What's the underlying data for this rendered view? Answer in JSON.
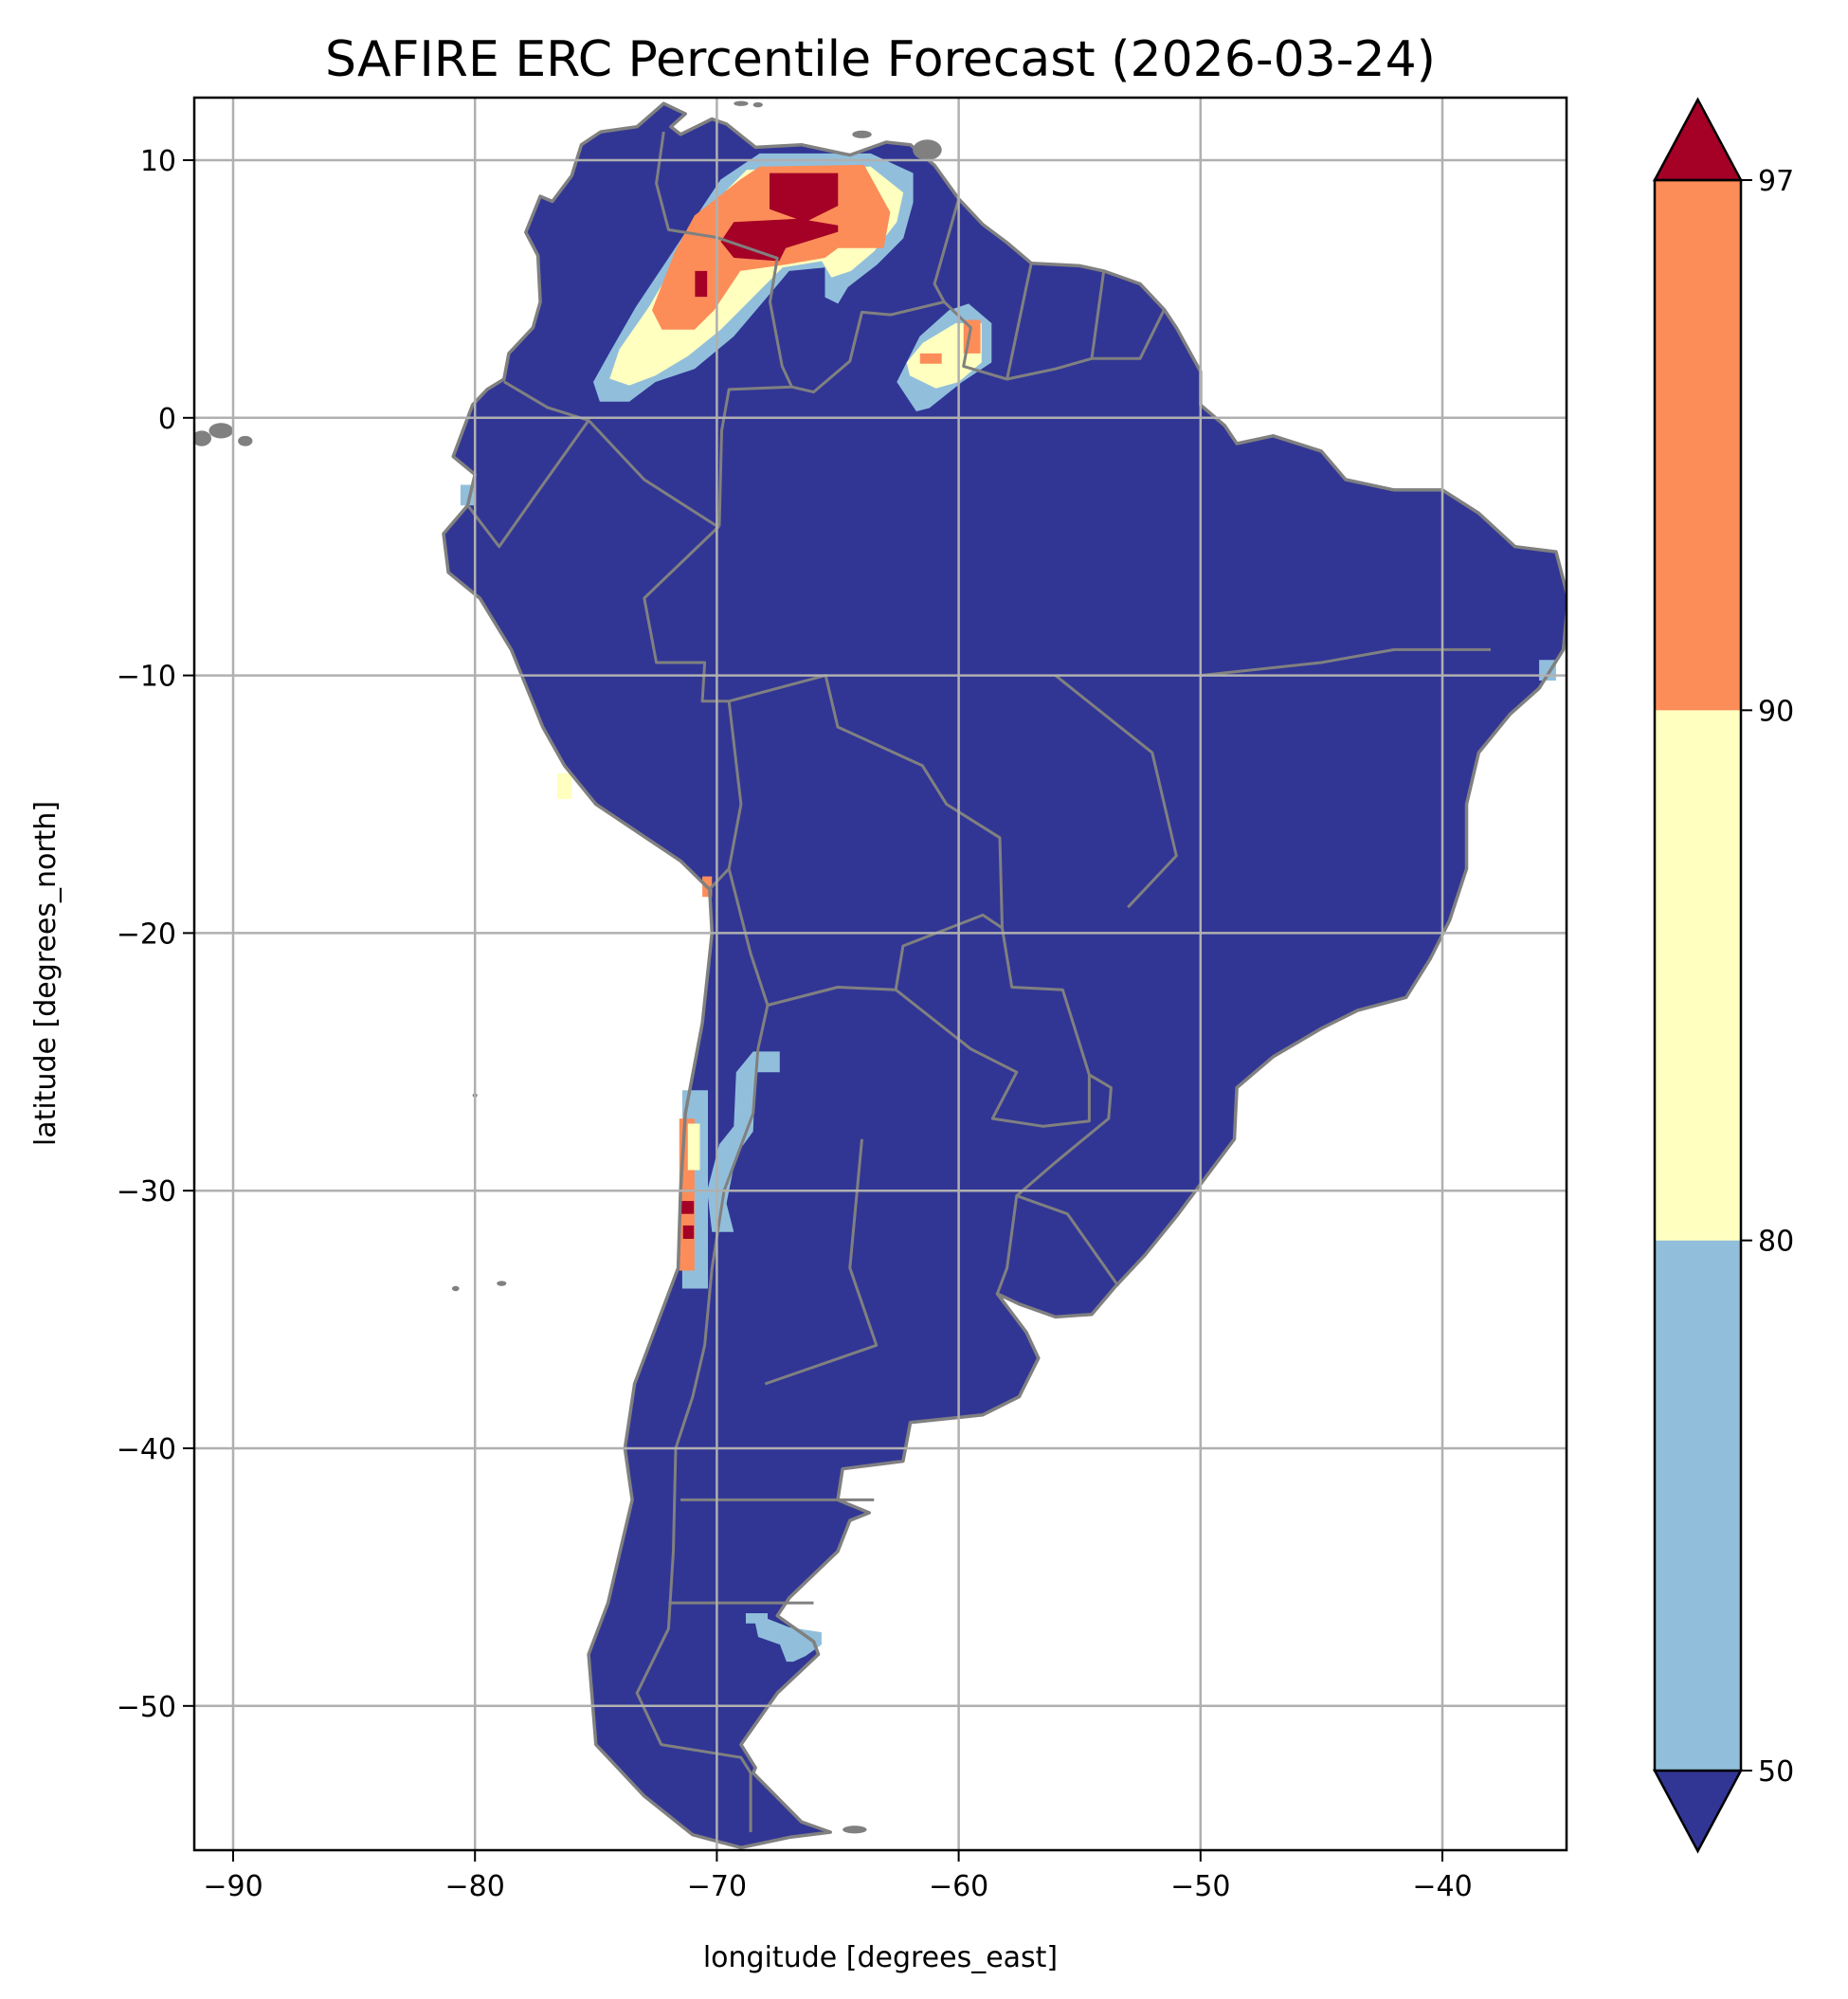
{
  "chart_data": {
    "type": "map",
    "title": "SAFIRE ERC Percentile Forecast (2026-03-24)",
    "xlabel": "longitude [degrees_east]",
    "ylabel": "latitude [degrees_north]",
    "xlim": [
      -91.6,
      -34.8
    ],
    "ylim": [
      -55.6,
      12.4
    ],
    "xticks": [
      -90,
      -80,
      -70,
      -60,
      -50,
      -40
    ],
    "xtick_labels": [
      "−90",
      "−80",
      "−70",
      "−60",
      "−50",
      "−40"
    ],
    "yticks": [
      10,
      0,
      -10,
      -20,
      -30,
      -40,
      -50
    ],
    "ytick_labels": [
      "10",
      "0",
      "−10",
      "−20",
      "−30",
      "−40",
      "−50"
    ],
    "grid": true,
    "land_class": "<50",
    "border_color": "#808080",
    "colorbar": {
      "placement": "right",
      "extend": "both",
      "boundaries": [
        50,
        80,
        90,
        97
      ],
      "tick_labels": [
        "50",
        "80",
        "90",
        "97"
      ],
      "classes": [
        {
          "class": "<50",
          "color": "#313695"
        },
        {
          "class": "50-80",
          "color": "#91bfdb"
        },
        {
          "class": "80-90",
          "color": "#ffffbf"
        },
        {
          "class": "90-97",
          "color": "#fc8d59"
        },
        {
          "class": ">97",
          "color": "#a50026"
        }
      ]
    },
    "regions": [
      {
        "class": "50-80",
        "polygon": [
          [
            -74.84,
            0.63
          ],
          [
            -75.11,
            1.39
          ],
          [
            -74.43,
            2.53
          ],
          [
            -73.35,
            4.3
          ],
          [
            -72.0,
            6.2
          ],
          [
            -70.92,
            7.73
          ],
          [
            -69.84,
            9.25
          ],
          [
            -68.23,
            10.26
          ],
          [
            -63.64,
            10.26
          ],
          [
            -61.88,
            9.5
          ],
          [
            -61.88,
            8.36
          ],
          [
            -62.29,
            6.97
          ],
          [
            -63.37,
            5.95
          ],
          [
            -64.58,
            5.07
          ],
          [
            -64.99,
            4.43
          ],
          [
            -65.53,
            4.68
          ],
          [
            -65.53,
            5.83
          ],
          [
            -67.01,
            5.7
          ],
          [
            -67.69,
            4.94
          ],
          [
            -69.3,
            3.16
          ],
          [
            -70.92,
            1.9
          ],
          [
            -72.54,
            1.39
          ],
          [
            -73.62,
            0.63
          ]
        ]
      },
      {
        "class": "80-90",
        "polygon": [
          [
            -74.43,
            1.52
          ],
          [
            -74.03,
            2.66
          ],
          [
            -72.81,
            4.3
          ],
          [
            -71.46,
            6.46
          ],
          [
            -70.38,
            7.98
          ],
          [
            -69.57,
            8.87
          ],
          [
            -68.76,
            9.63
          ],
          [
            -63.64,
            9.75
          ],
          [
            -62.29,
            8.74
          ],
          [
            -62.56,
            7.6
          ],
          [
            -63.5,
            6.46
          ],
          [
            -64.45,
            5.7
          ],
          [
            -65.26,
            5.45
          ],
          [
            -65.66,
            6.08
          ],
          [
            -67.28,
            5.83
          ],
          [
            -68.23,
            4.94
          ],
          [
            -69.84,
            3.42
          ],
          [
            -71.19,
            2.4
          ],
          [
            -72.54,
            1.64
          ],
          [
            -73.62,
            1.26
          ]
        ]
      },
      {
        "class": "90-97",
        "polygon": [
          [
            -72.68,
            4.18
          ],
          [
            -71.73,
            6.46
          ],
          [
            -70.92,
            7.85
          ],
          [
            -69.03,
            9.25
          ],
          [
            -68.23,
            9.75
          ],
          [
            -63.91,
            9.82
          ],
          [
            -62.83,
            7.98
          ],
          [
            -63.1,
            6.59
          ],
          [
            -64.99,
            6.59
          ],
          [
            -65.53,
            6.21
          ],
          [
            -67.15,
            5.95
          ],
          [
            -69.03,
            5.7
          ],
          [
            -70.11,
            4.18
          ],
          [
            -70.92,
            3.42
          ],
          [
            -72.27,
            3.42
          ]
        ]
      },
      {
        "class": ">97",
        "polygon": [
          [
            -67.82,
            9.5
          ],
          [
            -64.99,
            9.5
          ],
          [
            -64.99,
            8.23
          ],
          [
            -66.34,
            7.6
          ],
          [
            -67.82,
            8.1
          ]
        ]
      },
      {
        "class": ">97",
        "polygon": [
          [
            -69.3,
            7.6
          ],
          [
            -66.61,
            7.73
          ],
          [
            -64.99,
            7.47
          ],
          [
            -64.99,
            7.22
          ],
          [
            -67.15,
            6.59
          ],
          [
            -67.42,
            6.08
          ],
          [
            -69.3,
            6.21
          ],
          [
            -69.84,
            6.84
          ]
        ]
      },
      {
        "class": ">97",
        "polygon": [
          [
            -70.9,
            5.7
          ],
          [
            -70.4,
            5.7
          ],
          [
            -70.4,
            4.7
          ],
          [
            -70.9,
            4.7
          ]
        ]
      },
      {
        "class": "50-80",
        "polygon": [
          [
            -62.56,
            1.39
          ],
          [
            -61.61,
            3.16
          ],
          [
            -60.4,
            4.18
          ],
          [
            -59.59,
            4.43
          ],
          [
            -58.64,
            3.67
          ],
          [
            -58.64,
            2.15
          ],
          [
            -59.86,
            1.39
          ],
          [
            -61.21,
            0.38
          ],
          [
            -61.75,
            0.25
          ]
        ]
      },
      {
        "class": "80-90",
        "polygon": [
          [
            -62.15,
            2.15
          ],
          [
            -61.48,
            2.91
          ],
          [
            -60.13,
            3.67
          ],
          [
            -59.05,
            3.67
          ],
          [
            -59.05,
            2.15
          ],
          [
            -60.0,
            1.39
          ],
          [
            -60.94,
            1.14
          ],
          [
            -62.02,
            1.64
          ]
        ]
      },
      {
        "class": "90-97",
        "polygon": [
          [
            -59.8,
            3.8
          ],
          [
            -59.1,
            3.8
          ],
          [
            -59.1,
            2.5
          ],
          [
            -59.8,
            2.5
          ]
        ]
      },
      {
        "class": "90-97",
        "polygon": [
          [
            -61.6,
            2.5
          ],
          [
            -60.7,
            2.5
          ],
          [
            -60.7,
            2.1
          ],
          [
            -61.6,
            2.1
          ]
        ]
      },
      {
        "class": "50-80",
        "polygon": [
          [
            -71.43,
            -26.1
          ],
          [
            -70.37,
            -26.1
          ],
          [
            -70.37,
            -33.8
          ],
          [
            -71.43,
            -33.8
          ]
        ]
      },
      {
        "class": "90-97",
        "polygon": [
          [
            -71.55,
            -27.2
          ],
          [
            -70.92,
            -27.2
          ],
          [
            -70.92,
            -33.1
          ],
          [
            -71.55,
            -33.1
          ]
        ]
      },
      {
        "class": "80-90",
        "polygon": [
          [
            -71.2,
            -27.4
          ],
          [
            -70.7,
            -27.4
          ],
          [
            -70.7,
            -29.2
          ],
          [
            -71.2,
            -29.2
          ]
        ]
      },
      {
        "class": ">97",
        "polygon": [
          [
            -71.55,
            -30.4
          ],
          [
            -70.95,
            -30.4
          ],
          [
            -70.95,
            -30.9
          ],
          [
            -71.55,
            -30.9
          ]
        ]
      },
      {
        "class": ">97",
        "polygon": [
          [
            -71.4,
            -31.35
          ],
          [
            -70.95,
            -31.35
          ],
          [
            -70.95,
            -31.87
          ],
          [
            -71.4,
            -31.87
          ]
        ]
      },
      {
        "class": "50-80",
        "polygon": [
          [
            -68.5,
            -24.6
          ],
          [
            -67.4,
            -24.6
          ],
          [
            -67.4,
            -25.4
          ],
          [
            -68.4,
            -25.4
          ],
          [
            -68.5,
            -27.7
          ],
          [
            -69.2,
            -28.6
          ],
          [
            -69.6,
            -30.5
          ],
          [
            -69.3,
            -31.6
          ],
          [
            -70.2,
            -31.6
          ],
          [
            -70.4,
            -30.0
          ],
          [
            -69.9,
            -28.2
          ],
          [
            -69.3,
            -27.5
          ],
          [
            -69.2,
            -25.4
          ]
        ]
      },
      {
        "class": "50-80",
        "polygon": [
          [
            -68.8,
            -46.4
          ],
          [
            -67.9,
            -46.4
          ],
          [
            -67.9,
            -46.62
          ],
          [
            -67.0,
            -46.95
          ],
          [
            -65.67,
            -47.14
          ],
          [
            -65.67,
            -47.62
          ],
          [
            -66.33,
            -48.06
          ],
          [
            -66.84,
            -48.28
          ],
          [
            -67.12,
            -48.28
          ],
          [
            -67.39,
            -47.62
          ],
          [
            -68.29,
            -47.32
          ],
          [
            -68.41,
            -46.8
          ],
          [
            -68.8,
            -46.8
          ]
        ]
      },
      {
        "class": "50-80",
        "polygon": [
          [
            -36.0,
            -9.4
          ],
          [
            -35.3,
            -9.4
          ],
          [
            -35.3,
            -10.2
          ],
          [
            -36.0,
            -10.2
          ]
        ]
      },
      {
        "class": "50-80",
        "polygon": [
          [
            -80.6,
            -2.6
          ],
          [
            -80.0,
            -2.6
          ],
          [
            -80.0,
            -3.4
          ],
          [
            -80.6,
            -3.4
          ]
        ]
      },
      {
        "class": "80-90",
        "polygon": [
          [
            -76.6,
            -13.8
          ],
          [
            -76.0,
            -13.8
          ],
          [
            -76.0,
            -14.8
          ],
          [
            -76.6,
            -14.8
          ]
        ]
      },
      {
        "class": "90-97",
        "polygon": [
          [
            -70.6,
            -17.8
          ],
          [
            -70.2,
            -17.8
          ],
          [
            -70.2,
            -18.6
          ],
          [
            -70.6,
            -18.6
          ]
        ]
      }
    ]
  }
}
